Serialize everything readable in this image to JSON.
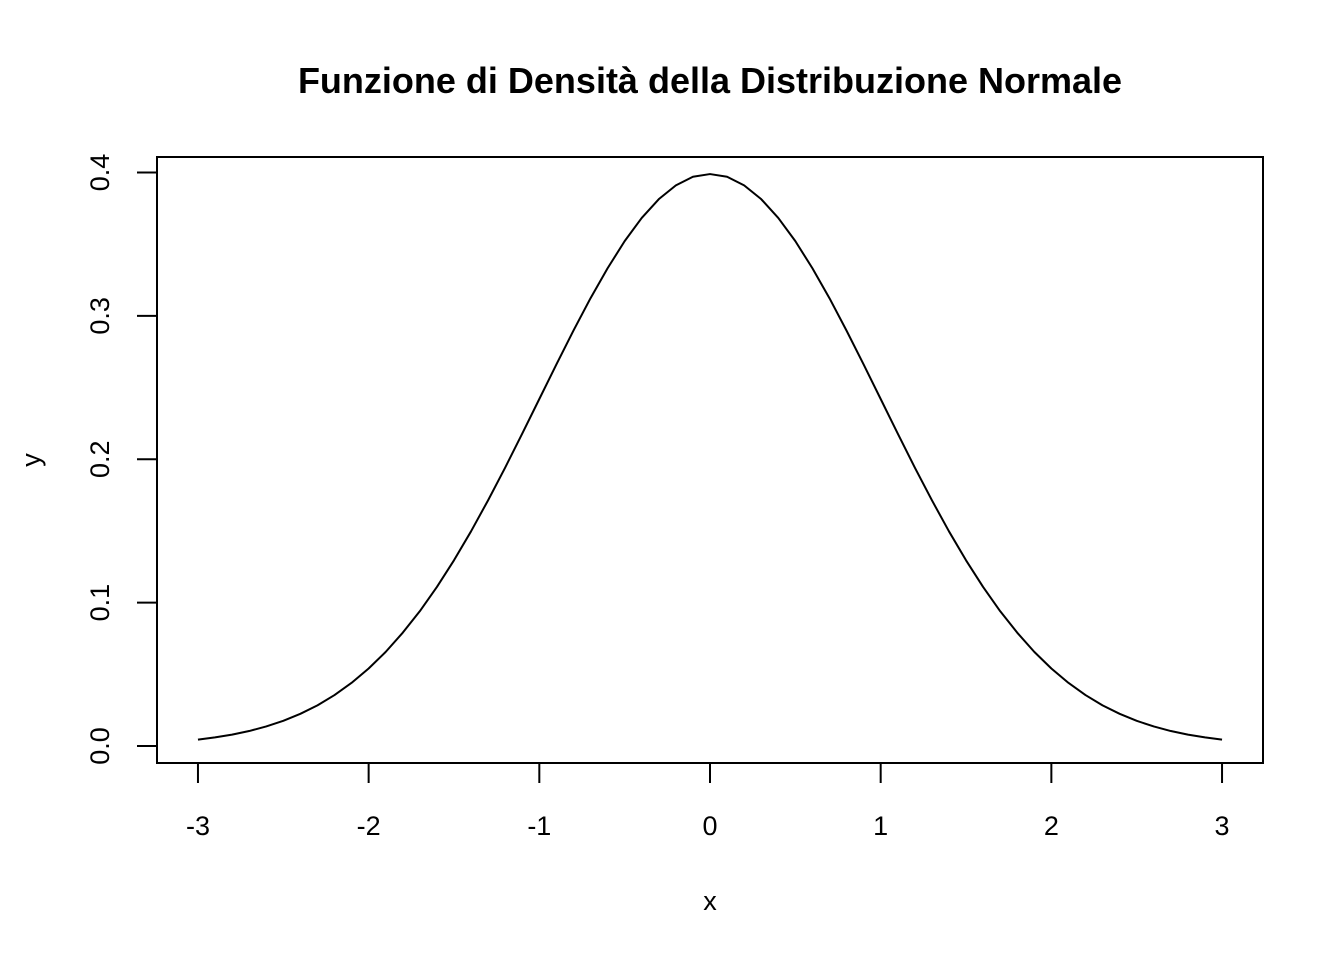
{
  "chart_data": {
    "type": "line",
    "title": "Funzione di Densità della Distribuzione Normale",
    "xlabel": "x",
    "ylabel": "y",
    "xlim": [
      -3.24,
      3.24
    ],
    "ylim": [
      -0.0119,
      0.4108
    ],
    "x_ticks": [
      -3,
      -2,
      -1,
      0,
      1,
      2,
      3
    ],
    "x_tick_labels": [
      "-3",
      "-2",
      "-1",
      "0",
      "1",
      "2",
      "3"
    ],
    "y_ticks": [
      0.0,
      0.1,
      0.2,
      0.3,
      0.4
    ],
    "y_tick_labels": [
      "0.0",
      "0.1",
      "0.2",
      "0.3",
      "0.4"
    ],
    "grid": false,
    "line_color": "#000000",
    "series": [
      {
        "x": [
          -3.0,
          -2.9,
          -2.8,
          -2.7,
          -2.6,
          -2.5,
          -2.4,
          -2.3,
          -2.2,
          -2.1,
          -2.0,
          -1.9,
          -1.8,
          -1.7,
          -1.6,
          -1.5,
          -1.4,
          -1.3,
          -1.2,
          -1.1,
          -1.0,
          -0.9,
          -0.8,
          -0.7,
          -0.6,
          -0.5,
          -0.4,
          -0.3,
          -0.2,
          -0.1,
          0.0,
          0.1,
          0.2,
          0.3,
          0.4,
          0.5,
          0.6,
          0.7,
          0.8,
          0.9,
          1.0,
          1.1,
          1.2,
          1.3,
          1.4,
          1.5,
          1.6,
          1.7,
          1.8,
          1.9,
          2.0,
          2.1,
          2.2,
          2.3,
          2.4,
          2.5,
          2.6,
          2.7,
          2.8,
          2.9,
          3.0
        ],
        "values": [
          0.0044,
          0.006,
          0.0079,
          0.0104,
          0.0136,
          0.0175,
          0.0224,
          0.0283,
          0.0355,
          0.044,
          0.054,
          0.0656,
          0.079,
          0.094,
          0.1109,
          0.1295,
          0.1497,
          0.1714,
          0.1942,
          0.2179,
          0.242,
          0.2661,
          0.2897,
          0.3123,
          0.3332,
          0.3521,
          0.3683,
          0.3814,
          0.391,
          0.397,
          0.3989,
          0.397,
          0.391,
          0.3814,
          0.3683,
          0.3521,
          0.3332,
          0.3123,
          0.2897,
          0.2661,
          0.242,
          0.2179,
          0.1942,
          0.1714,
          0.1497,
          0.1295,
          0.1109,
          0.094,
          0.079,
          0.0656,
          0.054,
          0.044,
          0.0355,
          0.0283,
          0.0224,
          0.0175,
          0.0136,
          0.0104,
          0.0079,
          0.006,
          0.0044
        ]
      }
    ]
  }
}
